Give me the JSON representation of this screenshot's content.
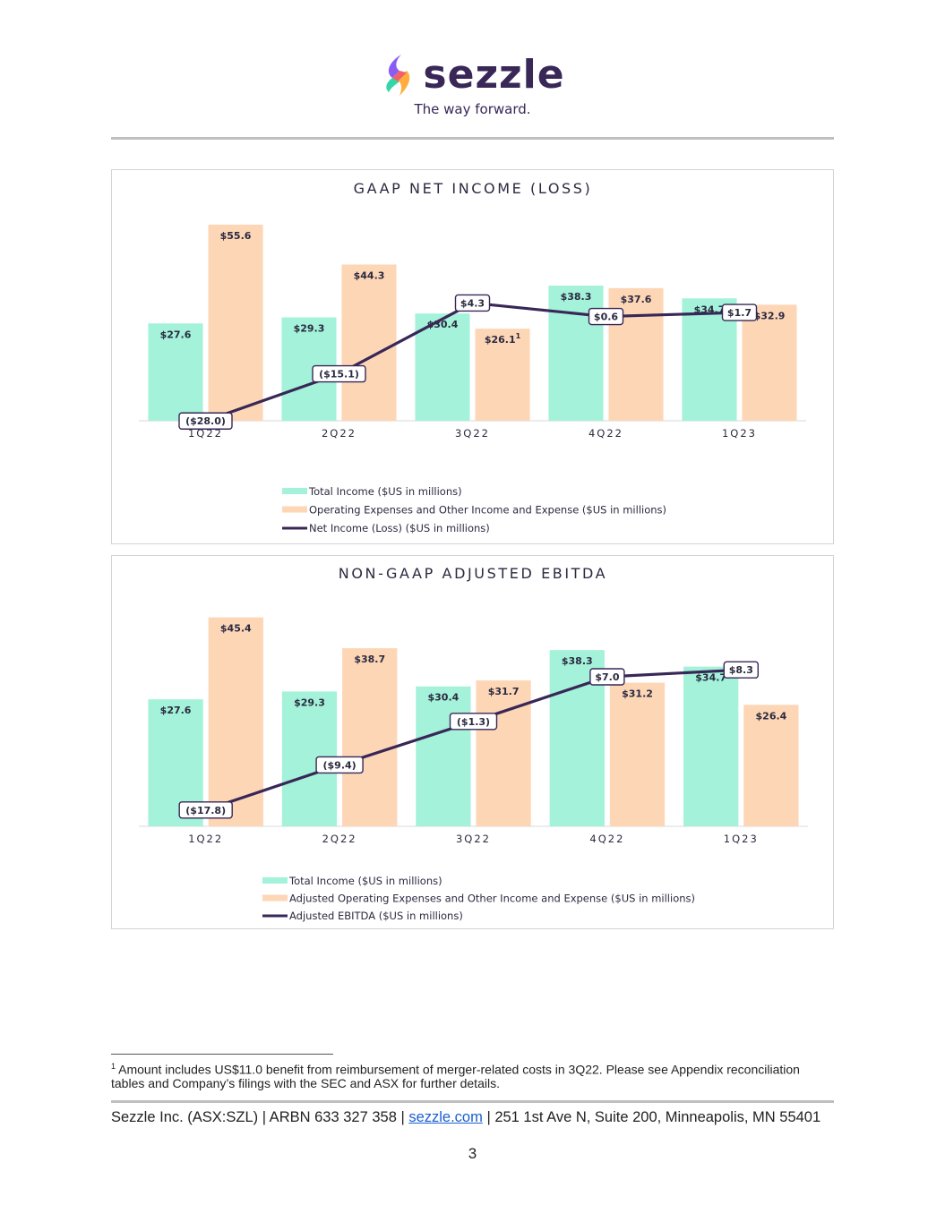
{
  "header": {
    "brand": "sezzle",
    "tagline": "The way forward."
  },
  "colors": {
    "income": "#a3f2d9",
    "expense": "#fdd6b6",
    "line": "#382757",
    "text": "#2b2a40"
  },
  "chart_data": [
    {
      "type": "bar",
      "title": "GAAP NET INCOME (LOSS)",
      "categories": [
        "1Q22",
        "2Q22",
        "3Q22",
        "4Q22",
        "1Q23"
      ],
      "series": [
        {
          "name": "Total Income ($US in millions)",
          "kind": "bar",
          "values": [
            27.6,
            29.3,
            30.4,
            38.3,
            34.7
          ],
          "labels": [
            "$27.6",
            "$29.3",
            "$30.4",
            "$38.3",
            "$34.7"
          ]
        },
        {
          "name": "Operating Expenses and Other Income and Expense ($US in millions)",
          "kind": "bar",
          "values": [
            55.6,
            44.3,
            26.1,
            37.6,
            32.9
          ],
          "labels": [
            "$55.6",
            "$44.3",
            "$26.1",
            "$37.6",
            "$32.9"
          ]
        },
        {
          "name": "Net Income (Loss) ($US in millions)",
          "kind": "line",
          "values": [
            -28.0,
            -15.1,
            4.3,
            0.6,
            1.7
          ],
          "labels": [
            "($28.0)",
            "($15.1)",
            "$4.3",
            "$0.6",
            "$1.7"
          ]
        }
      ],
      "footnote_marker": {
        "series": 1,
        "index": 2,
        "text": "1"
      },
      "ylim": [
        -30,
        60
      ],
      "legend": "bottom-center"
    },
    {
      "type": "bar",
      "title": "NON-GAAP ADJUSTED EBITDA",
      "categories": [
        "1Q22",
        "2Q22",
        "3Q22",
        "4Q22",
        "1Q23"
      ],
      "series": [
        {
          "name": "Total Income ($US in millions)",
          "kind": "bar",
          "values": [
            27.6,
            29.3,
            30.4,
            38.3,
            34.7
          ],
          "labels": [
            "$27.6",
            "$29.3",
            "$30.4",
            "$38.3",
            "$34.7"
          ]
        },
        {
          "name": "Adjusted Operating Expenses and Other Income and Expense ($US in millions)",
          "kind": "bar",
          "values": [
            45.4,
            38.7,
            31.7,
            31.2,
            26.4
          ],
          "labels": [
            "$45.4",
            "$38.7",
            "$31.7",
            "$31.2",
            "$26.4"
          ]
        },
        {
          "name": "Adjusted EBITDA ($US in millions)",
          "kind": "line",
          "values": [
            -17.8,
            -9.4,
            -1.3,
            7.0,
            8.3
          ],
          "labels": [
            "($17.8)",
            "($9.4)",
            "($1.3)",
            "$7.0",
            "$8.3"
          ]
        }
      ],
      "ylim": [
        -20,
        50
      ],
      "legend": "bottom-center"
    }
  ],
  "footnote": {
    "marker": "1",
    "text": "Amount includes US$11.0 benefit from reimbursement of merger-related costs in 3Q22. Please see Appendix reconciliation tables and Company’s filings with the SEC and ASX for further details."
  },
  "footer": {
    "prefix": "Sezzle Inc. (ASX:SZL) | ARBN 633 327 358 | ",
    "link": "sezzle.com",
    "suffix": " | 251 1st Ave N, Suite 200, Minneapolis, MN 55401"
  },
  "page_number": "3"
}
